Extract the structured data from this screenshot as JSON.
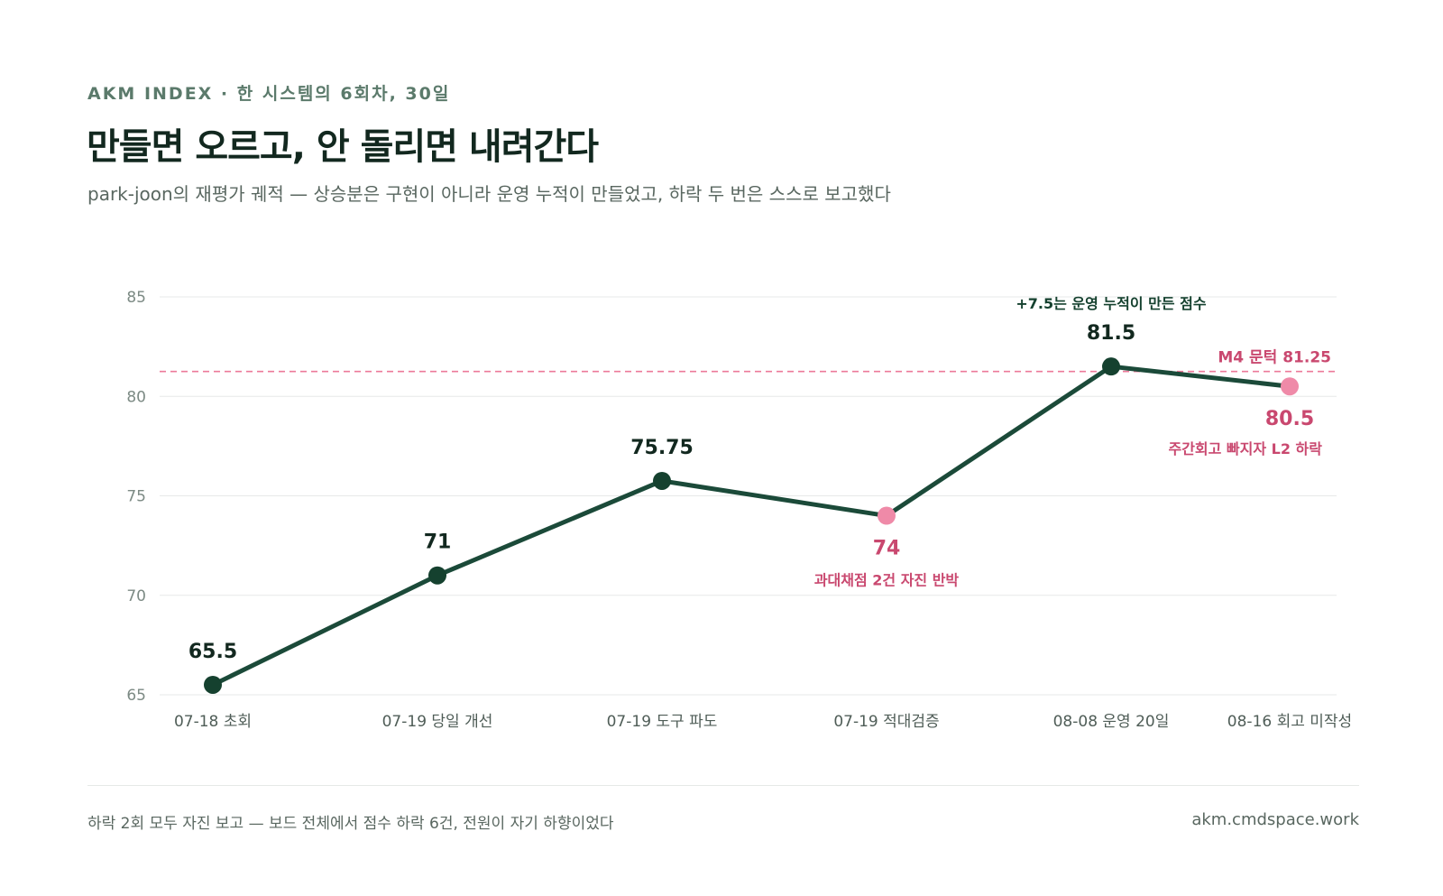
{
  "header": {
    "eyebrow": "AKM INDEX · 한 시스템의 6회차, 30일",
    "title": "만들면 오르고, 안 돌리면 내려간다",
    "subtitle": "park-joon의 재평가 궤적 — 상승분은 구현이 아니라 운영 누적이 만들었고, 하락 두 번은 스스로 보고했다"
  },
  "footer": {
    "note": "하락 2회 모두 자진 보고 — 보드 전체에서 점수 하락 6건, 전원이 자기 하향이었다",
    "site": "akm.cmdspace.work"
  },
  "colors": {
    "line": "#1b4a39",
    "rise_point": "#15412f",
    "drop_point": "#ef8aa8",
    "drop_text": "#c9486f",
    "threshold": "#ec7a9a",
    "grid": "#e7e9e8",
    "tick_text": "#7c8a84"
  },
  "chart_data": {
    "type": "line",
    "categories": [
      "07-18 초회",
      "07-19 당일 개선",
      "07-19 도구 파도",
      "07-19 적대검증",
      "08-08 운영 20일",
      "08-16 회고 미작성"
    ],
    "series": [
      {
        "values": [
          65.5,
          71,
          75.75,
          74,
          81.5,
          80.5
        ],
        "labels": [
          "65.5",
          "71",
          "75.75",
          "74",
          "81.5",
          "80.5"
        ],
        "drop": [
          false,
          false,
          false,
          true,
          false,
          true
        ]
      }
    ],
    "ylim": [
      65,
      85
    ],
    "yticks": [
      65,
      70,
      75,
      80,
      85
    ],
    "grid": true,
    "threshold": {
      "value": 81.25,
      "label": "M4 문턱 81.25"
    },
    "annotations": [
      {
        "point": 3,
        "text": "과대채점 2건 자진 반박",
        "kind": "drop"
      },
      {
        "point": 4,
        "text": "+7.5는 운영 누적이 만든 점수",
        "kind": "rise"
      },
      {
        "point": 5,
        "text": "주간회고 빠지자 L2 하락",
        "kind": "drop"
      }
    ],
    "xlabel": "",
    "ylabel": ""
  }
}
